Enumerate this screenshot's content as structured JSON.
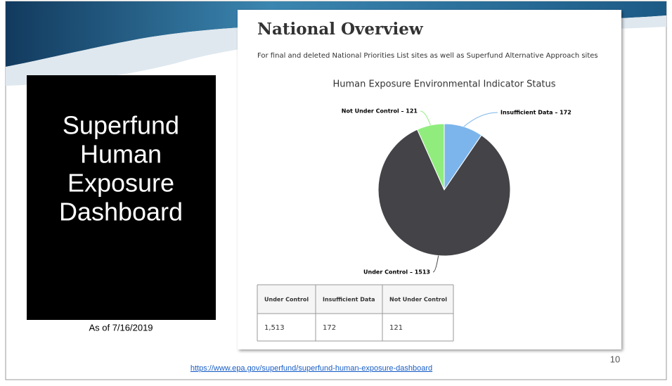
{
  "slide": {
    "title_lines": [
      "Superfund",
      "Human",
      "Exposure",
      "Dashboard"
    ],
    "as_of": "As of 7/16/2019",
    "link": "https://www.epa.gov/superfund/superfund-human-exposure-dashboard",
    "page_number": "10"
  },
  "panel": {
    "heading": "National Overview",
    "subtitle": "For final and deleted National Priorities List sites as well as Superfund Alternative Approach sites"
  },
  "chart_data": {
    "type": "pie",
    "title": "Human Exposure Environmental Indicator Status",
    "categories": [
      "Insufficient Data",
      "Under Control",
      "Not Under Control"
    ],
    "values": [
      172,
      1513,
      121
    ],
    "value_labels": [
      "Insufficient Data – 172",
      "Under Control – 1513",
      "Not Under Control – 121"
    ],
    "colors": [
      "#7cb5ec",
      "#434348",
      "#90ed7d"
    ]
  },
  "table": {
    "header": [
      "Under Control",
      "Insufficient Data",
      "Not Under Control"
    ],
    "rows": [
      [
        "1,513",
        "172",
        "121"
      ]
    ]
  }
}
